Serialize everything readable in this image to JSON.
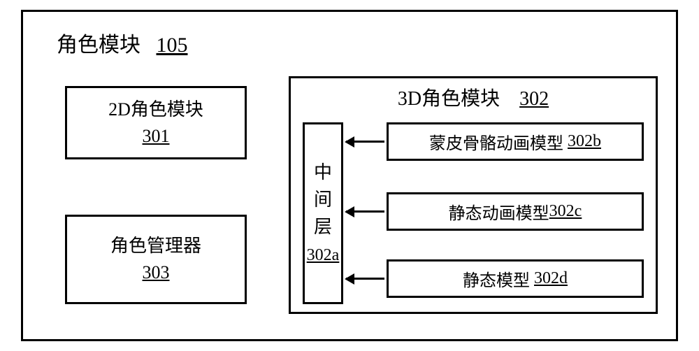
{
  "diagram": {
    "type": "block-diagram",
    "background_color": "#ffffff",
    "border_color": "#000000",
    "border_width": 3,
    "font_family": "SimSun",
    "outer": {
      "label": "角色模块",
      "ref": "105",
      "title_fontsize": 30
    },
    "left_column": {
      "module_2d": {
        "label": "2D角色模块",
        "ref": "301",
        "fontsize": 26
      },
      "manager": {
        "label": "角色管理器",
        "ref": "303",
        "fontsize": 26
      }
    },
    "module_3d": {
      "label": "3D角色模块",
      "ref": "302",
      "title_fontsize": 28,
      "middle_layer": {
        "label_chars": [
          "中",
          "间",
          "层"
        ],
        "ref": "302a",
        "fontsize": 26
      },
      "items": [
        {
          "label": "蒙皮骨骼动画模型",
          "ref": "302b"
        },
        {
          "label": "静态动画模型",
          "ref": "302c"
        },
        {
          "label": "静态模型",
          "ref": "302d"
        }
      ],
      "item_fontsize": 24,
      "arrow_color": "#000000"
    }
  }
}
